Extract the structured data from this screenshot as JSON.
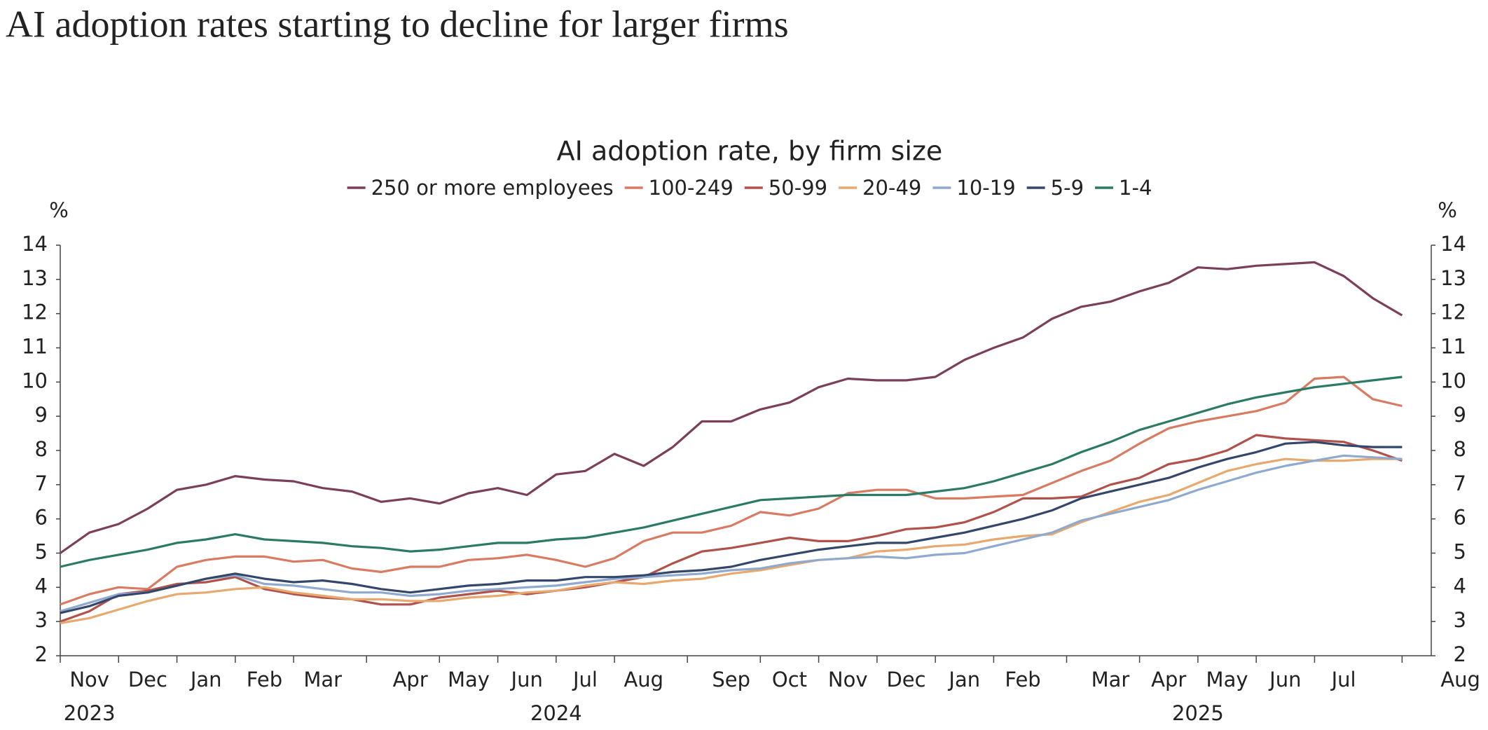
{
  "title": "AI adoption rates starting to decline for larger firms",
  "chart_data": {
    "type": "line",
    "title": "AI adoption rate, by firm size",
    "ylabel": "%",
    "y2label": "%",
    "categories": [
      null,
      "Nov",
      null,
      "Dec",
      null,
      "Jan",
      null,
      "Feb",
      null,
      "Mar",
      null,
      null,
      "Apr",
      null,
      "May",
      null,
      "Jun",
      null,
      "Jul",
      null,
      "Aug",
      null,
      null,
      "Sep",
      null,
      "Oct",
      null,
      "Nov",
      null,
      "Dec",
      null,
      "Jan",
      null,
      "Feb",
      null,
      null,
      "Mar",
      null,
      "Apr",
      null,
      "May",
      null,
      "Jun",
      null,
      "Jul",
      null,
      null,
      null,
      "Aug"
    ],
    "category_years": [
      null,
      "2023",
      null,
      null,
      null,
      null,
      null,
      null,
      null,
      null,
      null,
      null,
      null,
      null,
      null,
      null,
      null,
      "2024",
      null,
      null,
      null,
      null,
      null,
      null,
      null,
      null,
      null,
      null,
      null,
      null,
      null,
      null,
      null,
      null,
      null,
      null,
      null,
      null,
      null,
      "2025",
      null,
      null,
      null,
      null,
      null,
      null,
      null,
      null,
      null
    ],
    "series": [
      {
        "name": "250 or more employees",
        "color": "#7b3f5a",
        "values": [
          5.0,
          5.6,
          5.85,
          6.3,
          6.85,
          7.0,
          7.25,
          7.15,
          7.1,
          6.9,
          6.8,
          6.5,
          6.6,
          6.45,
          6.75,
          6.9,
          6.7,
          7.3,
          7.4,
          7.9,
          7.55,
          8.1,
          8.85,
          8.85,
          9.2,
          9.4,
          9.85,
          10.1,
          10.05,
          10.05,
          10.15,
          10.65,
          11.0,
          11.3,
          11.85,
          12.2,
          12.35,
          12.65,
          12.9,
          13.35,
          13.3,
          13.4,
          13.45,
          13.5,
          13.1,
          12.45,
          11.95,
          null,
          null
        ]
      },
      {
        "name": "100-249",
        "color": "#d97b63",
        "values": [
          3.5,
          3.8,
          4.0,
          3.95,
          4.6,
          4.8,
          4.9,
          4.9,
          4.75,
          4.8,
          4.55,
          4.45,
          4.6,
          4.6,
          4.8,
          4.85,
          4.95,
          4.8,
          4.6,
          4.85,
          5.35,
          5.6,
          5.6,
          5.8,
          6.2,
          6.1,
          6.3,
          6.75,
          6.85,
          6.85,
          6.6,
          6.6,
          6.65,
          6.7,
          7.05,
          7.4,
          7.7,
          8.2,
          8.65,
          8.85,
          9.0,
          9.15,
          9.4,
          10.1,
          10.15,
          9.5,
          9.3,
          null,
          null
        ]
      },
      {
        "name": "50-99",
        "color": "#b0524a",
        "values": [
          3.0,
          3.3,
          3.8,
          3.9,
          4.1,
          4.15,
          4.3,
          3.95,
          3.8,
          3.7,
          3.65,
          3.5,
          3.5,
          3.7,
          3.8,
          3.9,
          3.8,
          3.9,
          4.0,
          4.15,
          4.3,
          4.7,
          5.05,
          5.15,
          5.3,
          5.45,
          5.35,
          5.35,
          5.5,
          5.7,
          5.75,
          5.9,
          6.2,
          6.6,
          6.6,
          6.65,
          7.0,
          7.2,
          7.6,
          7.75,
          8.0,
          8.45,
          8.35,
          8.3,
          8.25,
          8.0,
          7.7,
          null,
          null
        ]
      },
      {
        "name": "20-49",
        "color": "#e8a96f",
        "values": [
          2.95,
          3.1,
          3.35,
          3.6,
          3.8,
          3.85,
          3.95,
          4.0,
          3.85,
          3.75,
          3.65,
          3.65,
          3.6,
          3.6,
          3.7,
          3.75,
          3.85,
          3.9,
          4.05,
          4.15,
          4.1,
          4.2,
          4.25,
          4.4,
          4.5,
          4.65,
          4.8,
          4.85,
          5.05,
          5.1,
          5.2,
          5.25,
          5.4,
          5.5,
          5.55,
          5.9,
          6.2,
          6.5,
          6.7,
          7.05,
          7.4,
          7.6,
          7.75,
          7.7,
          7.7,
          7.75,
          7.75,
          null,
          null
        ]
      },
      {
        "name": "10-19",
        "color": "#8fa9cf",
        "values": [
          3.3,
          3.55,
          3.8,
          3.85,
          4.05,
          4.25,
          4.35,
          4.1,
          4.05,
          3.95,
          3.85,
          3.85,
          3.75,
          3.8,
          3.9,
          3.95,
          4.0,
          4.05,
          4.15,
          4.25,
          4.3,
          4.35,
          4.4,
          4.5,
          4.55,
          4.7,
          4.8,
          4.85,
          4.9,
          4.85,
          4.95,
          5.0,
          5.2,
          5.4,
          5.6,
          5.95,
          6.15,
          6.35,
          6.55,
          6.85,
          7.1,
          7.35,
          7.55,
          7.7,
          7.85,
          7.8,
          7.75,
          null,
          null
        ]
      },
      {
        "name": "5-9",
        "color": "#34476b",
        "values": [
          3.25,
          3.45,
          3.75,
          3.85,
          4.05,
          4.25,
          4.4,
          4.25,
          4.15,
          4.2,
          4.1,
          3.95,
          3.85,
          3.95,
          4.05,
          4.1,
          4.2,
          4.2,
          4.3,
          4.3,
          4.35,
          4.45,
          4.5,
          4.6,
          4.8,
          4.95,
          5.1,
          5.2,
          5.3,
          5.3,
          5.45,
          5.6,
          5.8,
          6.0,
          6.25,
          6.6,
          6.8,
          7.0,
          7.2,
          7.5,
          7.75,
          7.95,
          8.2,
          8.25,
          8.15,
          8.1,
          8.1,
          null,
          null
        ]
      },
      {
        "name": "1-4",
        "color": "#2a7a64",
        "values": [
          4.6,
          4.8,
          4.95,
          5.1,
          5.3,
          5.4,
          5.55,
          5.4,
          5.35,
          5.3,
          5.2,
          5.15,
          5.05,
          5.1,
          5.2,
          5.3,
          5.3,
          5.4,
          5.45,
          5.6,
          5.75,
          5.95,
          6.15,
          6.35,
          6.55,
          6.6,
          6.65,
          6.7,
          6.7,
          6.7,
          6.8,
          6.9,
          7.1,
          7.35,
          7.6,
          7.95,
          8.25,
          8.6,
          8.85,
          9.1,
          9.35,
          9.55,
          9.7,
          9.85,
          9.95,
          10.05,
          10.15,
          null,
          null
        ]
      }
    ],
    "ylim": [
      2,
      14
    ],
    "yticks": [
      2,
      3,
      4,
      5,
      6,
      7,
      8,
      9,
      10,
      11,
      12,
      13,
      14
    ],
    "y2lim": [
      2,
      14
    ],
    "y2ticks": [
      2,
      3,
      4,
      5,
      6,
      7,
      8,
      9,
      10,
      11,
      12,
      13,
      14
    ],
    "grid": false
  }
}
